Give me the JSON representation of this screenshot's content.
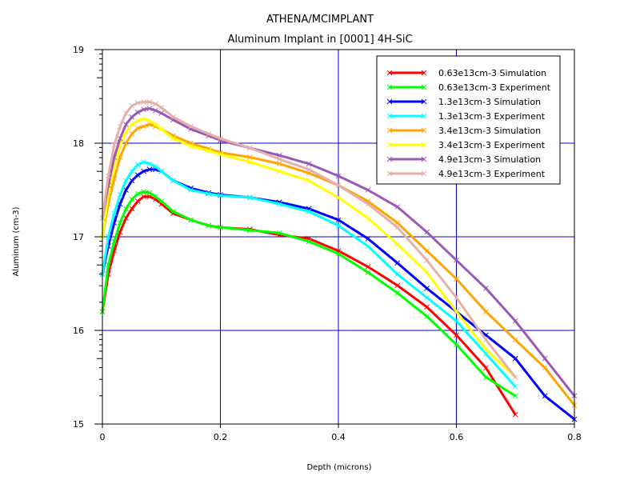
{
  "title": "ATHENA/MCIMPLANT",
  "subtitle": "Aluminum Implant in [0001] 4H-SiC",
  "chart_data": {
    "type": "line",
    "title": "ATHENA/MCIMPLANT",
    "subtitle": "Aluminum Implant in [0001] 4H-SiC",
    "xlabel": "Depth (microns)",
    "ylabel": "Aluminum (cm-3)",
    "xlim": [
      0,
      0.8
    ],
    "ylim": [
      15,
      19
    ],
    "x_ticks": [
      0,
      0.2,
      0.4,
      0.6,
      0.8
    ],
    "x_tick_labels": [
      "0",
      "0.2",
      "0.4",
      "0.6",
      "0.8"
    ],
    "y_ticks": [
      15,
      16,
      17,
      18,
      19
    ],
    "y_tick_labels": [
      "15",
      "16",
      "17",
      "18",
      "19"
    ],
    "grid": true,
    "legend_position": "top-right",
    "series": [
      {
        "name": "0.63e13cm-3 Simulation",
        "color": "#ff0000",
        "x": [
          0,
          0.01,
          0.02,
          0.03,
          0.04,
          0.05,
          0.06,
          0.07,
          0.08,
          0.09,
          0.1,
          0.12,
          0.15,
          0.18,
          0.2,
          0.25,
          0.3,
          0.35,
          0.4,
          0.45,
          0.5,
          0.55,
          0.6,
          0.65,
          0.7
        ],
        "y": [
          16.2,
          16.6,
          16.85,
          17.05,
          17.2,
          17.3,
          17.38,
          17.43,
          17.43,
          17.4,
          17.35,
          17.25,
          17.18,
          17.12,
          17.1,
          17.08,
          17.02,
          16.98,
          16.85,
          16.68,
          16.48,
          16.25,
          15.95,
          15.6,
          15.1
        ]
      },
      {
        "name": "0.63e13cm-3 Experiment",
        "color": "#00ff00",
        "x": [
          0,
          0.01,
          0.02,
          0.03,
          0.04,
          0.05,
          0.06,
          0.07,
          0.08,
          0.09,
          0.1,
          0.12,
          0.15,
          0.18,
          0.2,
          0.25,
          0.3,
          0.35,
          0.4,
          0.45,
          0.5,
          0.55,
          0.6,
          0.65,
          0.7
        ],
        "y": [
          16.2,
          16.7,
          16.95,
          17.15,
          17.3,
          17.4,
          17.46,
          17.48,
          17.47,
          17.43,
          17.38,
          17.27,
          17.18,
          17.12,
          17.1,
          17.07,
          17.04,
          16.95,
          16.82,
          16.62,
          16.4,
          16.15,
          15.85,
          15.5,
          15.3
        ]
      },
      {
        "name": "1.3e13cm-3 Simulation",
        "color": "#0000ff",
        "x": [
          0,
          0.01,
          0.02,
          0.03,
          0.04,
          0.05,
          0.06,
          0.07,
          0.08,
          0.09,
          0.1,
          0.12,
          0.15,
          0.18,
          0.2,
          0.25,
          0.3,
          0.35,
          0.4,
          0.45,
          0.5,
          0.55,
          0.6,
          0.65,
          0.7,
          0.75,
          0.8
        ],
        "y": [
          16.6,
          16.9,
          17.15,
          17.35,
          17.5,
          17.6,
          17.66,
          17.7,
          17.72,
          17.72,
          17.7,
          17.6,
          17.52,
          17.47,
          17.45,
          17.42,
          17.37,
          17.3,
          17.18,
          16.98,
          16.72,
          16.45,
          16.2,
          15.95,
          15.7,
          15.3,
          15.05
        ]
      },
      {
        "name": "1.3e13cm-3 Experiment",
        "color": "#00ffff",
        "x": [
          0,
          0.01,
          0.02,
          0.03,
          0.04,
          0.05,
          0.06,
          0.07,
          0.08,
          0.09,
          0.1,
          0.12,
          0.15,
          0.18,
          0.2,
          0.25,
          0.3,
          0.35,
          0.4,
          0.45,
          0.5,
          0.55,
          0.6,
          0.65,
          0.7
        ],
        "y": [
          16.6,
          17.0,
          17.25,
          17.45,
          17.6,
          17.7,
          17.77,
          17.8,
          17.78,
          17.75,
          17.7,
          17.6,
          17.5,
          17.46,
          17.44,
          17.42,
          17.35,
          17.27,
          17.12,
          16.9,
          16.6,
          16.35,
          16.1,
          15.75,
          15.4
        ]
      },
      {
        "name": "3.4e13cm-3 Simulation",
        "color": "#ffa500",
        "x": [
          0,
          0.01,
          0.02,
          0.03,
          0.04,
          0.05,
          0.06,
          0.07,
          0.08,
          0.09,
          0.1,
          0.12,
          0.15,
          0.18,
          0.2,
          0.25,
          0.3,
          0.35,
          0.4,
          0.45,
          0.5,
          0.55,
          0.6,
          0.65,
          0.7,
          0.75,
          0.8
        ],
        "y": [
          17.0,
          17.35,
          17.62,
          17.85,
          18.0,
          18.1,
          18.16,
          18.18,
          18.2,
          18.18,
          18.15,
          18.08,
          18.0,
          17.94,
          17.9,
          17.85,
          17.78,
          17.68,
          17.55,
          17.38,
          17.15,
          16.85,
          16.55,
          16.2,
          15.9,
          15.6,
          15.2
        ]
      },
      {
        "name": "3.4e13cm-3 Experiment",
        "color": "#ffff00",
        "x": [
          0,
          0.01,
          0.02,
          0.03,
          0.04,
          0.05,
          0.06,
          0.07,
          0.08,
          0.09,
          0.1,
          0.12,
          0.15,
          0.18,
          0.2,
          0.25,
          0.3,
          0.35,
          0.4,
          0.45,
          0.5,
          0.55,
          0.6,
          0.65,
          0.7
        ],
        "y": [
          17.0,
          17.45,
          17.75,
          17.98,
          18.12,
          18.2,
          18.24,
          18.26,
          18.24,
          18.2,
          18.15,
          18.05,
          17.97,
          17.92,
          17.88,
          17.8,
          17.7,
          17.6,
          17.42,
          17.2,
          16.92,
          16.62,
          16.2,
          15.8,
          15.5
        ]
      },
      {
        "name": "4.9e13cm-3 Simulation",
        "color": "#9b59b6",
        "x": [
          0,
          0.01,
          0.02,
          0.03,
          0.04,
          0.05,
          0.06,
          0.07,
          0.08,
          0.09,
          0.1,
          0.12,
          0.15,
          0.18,
          0.2,
          0.25,
          0.3,
          0.35,
          0.4,
          0.45,
          0.5,
          0.55,
          0.6,
          0.65,
          0.7,
          0.75,
          0.8
        ],
        "y": [
          17.2,
          17.55,
          17.85,
          18.05,
          18.2,
          18.28,
          18.33,
          18.36,
          18.37,
          18.35,
          18.32,
          18.25,
          18.15,
          18.08,
          18.03,
          17.95,
          17.87,
          17.78,
          17.65,
          17.5,
          17.32,
          17.05,
          16.75,
          16.45,
          16.1,
          15.7,
          15.3
        ]
      },
      {
        "name": "4.9e13cm-3 Experiment",
        "color": "#e6b0aa",
        "x": [
          0,
          0.01,
          0.02,
          0.03,
          0.04,
          0.05,
          0.06,
          0.07,
          0.08,
          0.09,
          0.1,
          0.12,
          0.15,
          0.18,
          0.2,
          0.25,
          0.3,
          0.35,
          0.4,
          0.45,
          0.5,
          0.55,
          0.6,
          0.65,
          0.7
        ],
        "y": [
          17.2,
          17.65,
          17.98,
          18.18,
          18.32,
          18.4,
          18.43,
          18.44,
          18.44,
          18.42,
          18.38,
          18.28,
          18.18,
          18.1,
          18.05,
          17.95,
          17.83,
          17.72,
          17.55,
          17.35,
          17.1,
          16.75,
          16.35,
          15.9,
          15.5
        ]
      }
    ]
  }
}
